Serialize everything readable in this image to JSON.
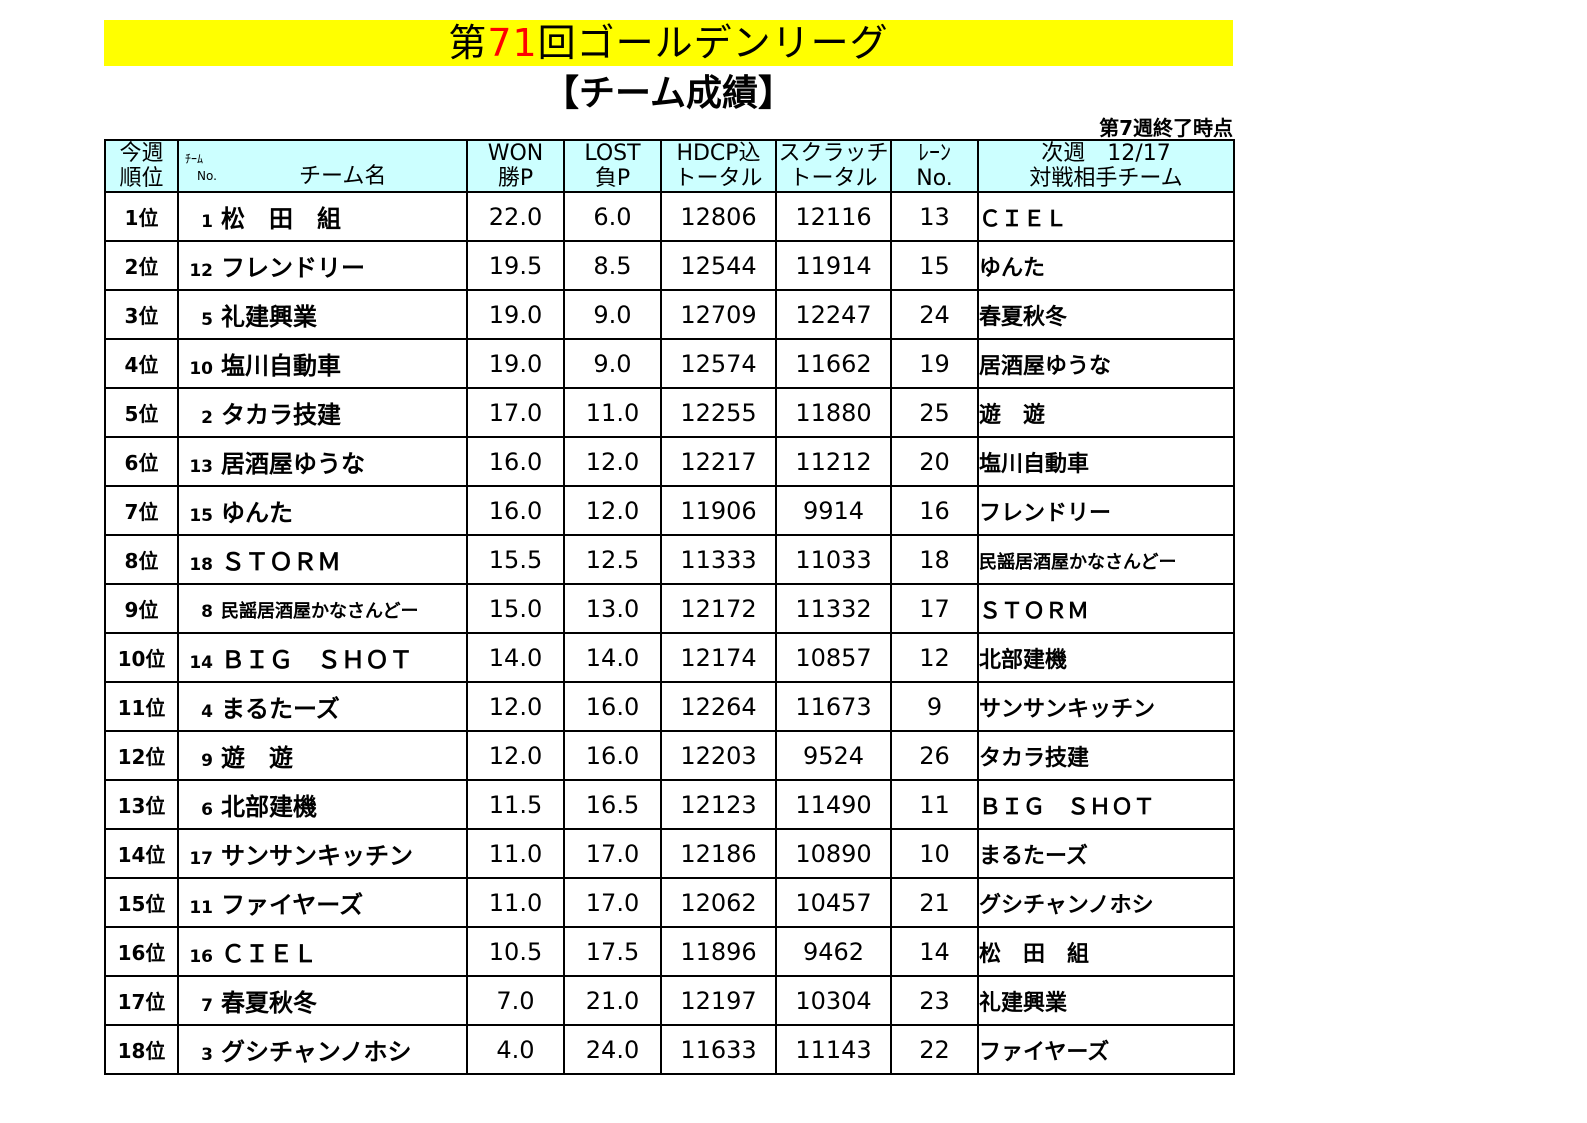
{
  "title": {
    "prefix": "第",
    "number": "71",
    "suffix": "回ゴールデンリーグ"
  },
  "subtitle": "【チーム成績】",
  "as_of": "第7週終了時点",
  "headers": {
    "rank": [
      "今週",
      "順位"
    ],
    "team_small": [
      "ﾁｰﾑ",
      "No."
    ],
    "team_name": "チーム名",
    "won": [
      "WON",
      "勝P"
    ],
    "lost": [
      "LOST",
      "負P"
    ],
    "hdcp": [
      "HDCP込",
      "トータル"
    ],
    "scratch": [
      "スクラッチ",
      "トータル"
    ],
    "lane": [
      "ﾚｰﾝ",
      "No."
    ],
    "next": [
      "次週　12/17",
      "対戦相手チーム"
    ]
  },
  "rows": [
    {
      "rank": "1位",
      "no": "1",
      "team": "松　田　組",
      "won": "22.0",
      "lost": "6.0",
      "hdcp": "12806",
      "scratch": "12116",
      "lane": "13",
      "opponent": "ＣＩＥＬ"
    },
    {
      "rank": "2位",
      "no": "12",
      "team": "フレンドリー",
      "won": "19.5",
      "lost": "8.5",
      "hdcp": "12544",
      "scratch": "11914",
      "lane": "15",
      "opponent": "ゆんた"
    },
    {
      "rank": "3位",
      "no": "5",
      "team": "礼建興業",
      "won": "19.0",
      "lost": "9.0",
      "hdcp": "12709",
      "scratch": "12247",
      "lane": "24",
      "opponent": "春夏秋冬"
    },
    {
      "rank": "4位",
      "no": "10",
      "team": "塩川自動車",
      "won": "19.0",
      "lost": "9.0",
      "hdcp": "12574",
      "scratch": "11662",
      "lane": "19",
      "opponent": "居酒屋ゆうな"
    },
    {
      "rank": "5位",
      "no": "2",
      "team": "タカラ技建",
      "won": "17.0",
      "lost": "11.0",
      "hdcp": "12255",
      "scratch": "11880",
      "lane": "25",
      "opponent": "遊　遊"
    },
    {
      "rank": "6位",
      "no": "13",
      "team": "居酒屋ゆうな",
      "won": "16.0",
      "lost": "12.0",
      "hdcp": "12217",
      "scratch": "11212",
      "lane": "20",
      "opponent": "塩川自動車"
    },
    {
      "rank": "7位",
      "no": "15",
      "team": "ゆんた",
      "won": "16.0",
      "lost": "12.0",
      "hdcp": "11906",
      "scratch": "9914",
      "lane": "16",
      "opponent": "フレンドリー"
    },
    {
      "rank": "8位",
      "no": "18",
      "team": "ＳＴＯＲＭ",
      "won": "15.5",
      "lost": "12.5",
      "hdcp": "11333",
      "scratch": "11033",
      "lane": "18",
      "opponent": "民謡居酒屋かなさんどー"
    },
    {
      "rank": "9位",
      "no": "8",
      "team": "民謡居酒屋かなさんどー",
      "won": "15.0",
      "lost": "13.0",
      "hdcp": "12172",
      "scratch": "11332",
      "lane": "17",
      "opponent": "ＳＴＯＲＭ"
    },
    {
      "rank": "10位",
      "no": "14",
      "team": "ＢＩＧ　ＳＨＯＴ",
      "won": "14.0",
      "lost": "14.0",
      "hdcp": "12174",
      "scratch": "10857",
      "lane": "12",
      "opponent": "北部建機"
    },
    {
      "rank": "11位",
      "no": "4",
      "team": "まるたーズ",
      "won": "12.0",
      "lost": "16.0",
      "hdcp": "12264",
      "scratch": "11673",
      "lane": "9",
      "opponent": "サンサンキッチン"
    },
    {
      "rank": "12位",
      "no": "9",
      "team": "遊　遊",
      "won": "12.0",
      "lost": "16.0",
      "hdcp": "12203",
      "scratch": "9524",
      "lane": "26",
      "opponent": "タカラ技建"
    },
    {
      "rank": "13位",
      "no": "6",
      "team": "北部建機",
      "won": "11.5",
      "lost": "16.5",
      "hdcp": "12123",
      "scratch": "11490",
      "lane": "11",
      "opponent": "ＢＩＧ　ＳＨＯＴ"
    },
    {
      "rank": "14位",
      "no": "17",
      "team": "サンサンキッチン",
      "won": "11.0",
      "lost": "17.0",
      "hdcp": "12186",
      "scratch": "10890",
      "lane": "10",
      "opponent": "まるたーズ"
    },
    {
      "rank": "15位",
      "no": "11",
      "team": "ファイヤーズ",
      "won": "11.0",
      "lost": "17.0",
      "hdcp": "12062",
      "scratch": "10457",
      "lane": "21",
      "opponent": "グシチャンノホシ"
    },
    {
      "rank": "16位",
      "no": "16",
      "team": "ＣＩＥＬ",
      "won": "10.5",
      "lost": "17.5",
      "hdcp": "11896",
      "scratch": "9462",
      "lane": "14",
      "opponent": "松　田　組"
    },
    {
      "rank": "17位",
      "no": "7",
      "team": "春夏秋冬",
      "won": "7.0",
      "lost": "21.0",
      "hdcp": "12197",
      "scratch": "10304",
      "lane": "23",
      "opponent": "礼建興業"
    },
    {
      "rank": "18位",
      "no": "3",
      "team": "グシチャンノホシ",
      "won": "4.0",
      "lost": "24.0",
      "hdcp": "11633",
      "scratch": "11143",
      "lane": "22",
      "opponent": "ファイヤーズ"
    }
  ],
  "colors": {
    "banner": "#ffff00",
    "header_bg": "#ccffff",
    "title_number": "#ff0000"
  }
}
